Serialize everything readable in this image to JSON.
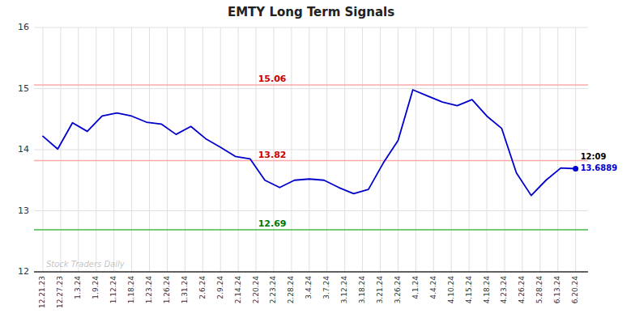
{
  "chart_data": {
    "type": "line",
    "title": "EMTY Long Term Signals",
    "x": [
      0,
      0.8333333333333334,
      1.6666666666666667,
      2.5,
      3.3333333333333335,
      4.166666666666667,
      5,
      5.833333333333334,
      6.666666666666667,
      7.5,
      8.333333333333334,
      9.166666666666668,
      10,
      10.833333333333334,
      11.666666666666668,
      12.5,
      13.333333333333334,
      14.166666666666668,
      15,
      15.833333333333334,
      16.666666666666668,
      17.5,
      18.333333333333336,
      19.166666666666668,
      20,
      20.833333333333336,
      21.666666666666668,
      22.5,
      23.333333333333336,
      24.166666666666668,
      25,
      25.833333333333336,
      26.666666666666668,
      27.5,
      28.333333333333336,
      29.166666666666668,
      30
    ],
    "series": [
      {
        "color": "#0000cc",
        "values": [
          14.22,
          14.01,
          14.44,
          14.3,
          14.55,
          14.6,
          14.55,
          14.45,
          14.42,
          14.25,
          14.38,
          14.18,
          14.04,
          13.89,
          13.85,
          13.5,
          13.38,
          13.5,
          13.52,
          13.5,
          13.38,
          13.28,
          13.35,
          13.78,
          14.15,
          14.98,
          14.88,
          14.78,
          14.72,
          14.82,
          14.55,
          14.35,
          13.62,
          13.25,
          13.5,
          13.7,
          13.6889
        ]
      }
    ],
    "xlim": [
      -0.5,
      30.7
    ],
    "xticks": [
      {
        "value": 0,
        "label": "12.21.23"
      },
      {
        "value": 1,
        "label": "12.27.23"
      },
      {
        "value": 2,
        "label": "1.3.24"
      },
      {
        "value": 3,
        "label": "1.9.24"
      },
      {
        "value": 4,
        "label": "1.12.24"
      },
      {
        "value": 5,
        "label": "1.18.24"
      },
      {
        "value": 6,
        "label": "1.23.24"
      },
      {
        "value": 7,
        "label": "1.26.24"
      },
      {
        "value": 8,
        "label": "1.31.24"
      },
      {
        "value": 9,
        "label": "2.6.24"
      },
      {
        "value": 10,
        "label": "2.9.24"
      },
      {
        "value": 11,
        "label": "2.14.24"
      },
      {
        "value": 12,
        "label": "2.20.24"
      },
      {
        "value": 13,
        "label": "2.23.24"
      },
      {
        "value": 14,
        "label": "2.28.24"
      },
      {
        "value": 15,
        "label": "3.4.24"
      },
      {
        "value": 16,
        "label": "3.7.24"
      },
      {
        "value": 17,
        "label": "3.12.24"
      },
      {
        "value": 18,
        "label": "3.18.24"
      },
      {
        "value": 19,
        "label": "3.21.24"
      },
      {
        "value": 20,
        "label": "3.26.24"
      },
      {
        "value": 21,
        "label": "4.1.24"
      },
      {
        "value": 22,
        "label": "4.4.24"
      },
      {
        "value": 23,
        "label": "4.10.24"
      },
      {
        "value": 24,
        "label": "4.15.24"
      },
      {
        "value": 25,
        "label": "4.18.24"
      },
      {
        "value": 26,
        "label": "4.23.24"
      },
      {
        "value": 27,
        "label": "4.26.24"
      },
      {
        "value": 28,
        "label": "5.28.24"
      },
      {
        "value": 29,
        "label": "6.13.24"
      },
      {
        "value": 30,
        "label": "6.20.24"
      }
    ],
    "ylim": [
      12.0,
      16.0
    ],
    "yticks": [
      12,
      13,
      14,
      15,
      16
    ],
    "grid": true,
    "hlines": [
      {
        "value": 15.06,
        "label": "15.06",
        "color": "#ffaaaa",
        "label_color": "#cc0000"
      },
      {
        "value": 13.82,
        "label": "13.82",
        "color": "#ffaaaa",
        "label_color": "#cc0000"
      },
      {
        "value": 12.69,
        "label": "12.69",
        "color": "#44bb44",
        "label_color": "#007700"
      }
    ],
    "last_point": {
      "x": 30,
      "y": 13.6889,
      "time_label": "12:09",
      "price_label": "13.6889"
    },
    "watermark": "Stock Traders Daily"
  }
}
